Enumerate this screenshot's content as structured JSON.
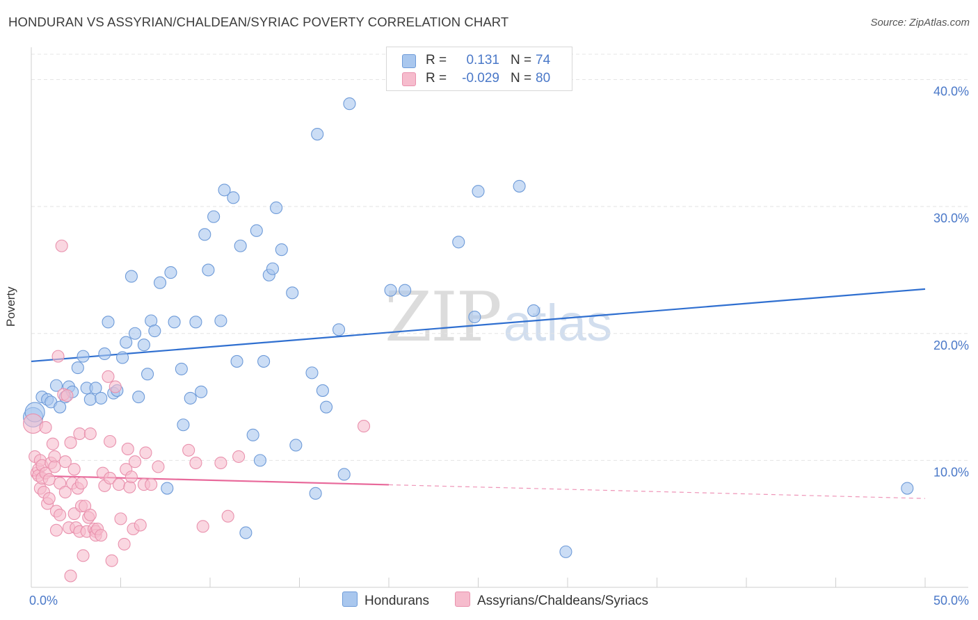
{
  "title": "HONDURAN VS ASSYRIAN/CHALDEAN/SYRIAC POVERTY CORRELATION CHART",
  "source": "Source: ZipAtlas.com",
  "watermark": {
    "zip": "ZIP",
    "atlas": "atlas"
  },
  "legend": {
    "rows": [
      {
        "r_label": "R =",
        "r_value": "0.131",
        "n_label": "N =",
        "n_value": "74"
      },
      {
        "r_label": "R =",
        "r_value": "-0.029",
        "n_label": "N =",
        "n_value": "80"
      }
    ],
    "items": [
      "Hondurans",
      "Assyrians/Chaldeans/Syriacs"
    ]
  },
  "colors": {
    "blue_fill": "#a9c7ee",
    "blue_stroke": "#6d9ad8",
    "blue_line": "#2f6fd0",
    "pink_fill": "#f6bccd",
    "pink_stroke": "#e991ad",
    "pink_line": "#e8689a",
    "tick_text": "#4a78c8",
    "grid": "#e4e4e4"
  },
  "chart_data": {
    "type": "scatter",
    "title": "HONDURAN VS ASSYRIAN/CHALDEAN/SYRIAC POVERTY CORRELATION CHART",
    "xlabel": "",
    "ylabel": "Poverty",
    "xlim": [
      0,
      50
    ],
    "ylim": [
      0,
      42
    ],
    "x_tick_labels": [
      {
        "value": 0,
        "label": "0.0%"
      },
      {
        "value": 50,
        "label": "50.0%"
      }
    ],
    "y_ticks": [
      {
        "value": 10,
        "label": "10.0%"
      },
      {
        "value": 20,
        "label": "20.0%"
      },
      {
        "value": 30,
        "label": "30.0%"
      },
      {
        "value": 40,
        "label": "40.0%"
      }
    ],
    "series": [
      {
        "name": "Hondurans",
        "r": 0.131,
        "n": 74,
        "trend": {
          "x0": 0,
          "y0": 17.8,
          "x1": 50,
          "y1": 23.5,
          "solid_until": 50
        },
        "points": [
          {
            "x": 0.1,
            "y": 13.4,
            "big": true
          },
          {
            "x": 0.2,
            "y": 13.8,
            "big": true
          },
          {
            "x": 0.6,
            "y": 15.0
          },
          {
            "x": 0.9,
            "y": 14.8
          },
          {
            "x": 1.1,
            "y": 14.6
          },
          {
            "x": 1.4,
            "y": 15.9
          },
          {
            "x": 1.6,
            "y": 14.2
          },
          {
            "x": 1.9,
            "y": 15.0
          },
          {
            "x": 2.1,
            "y": 15.8
          },
          {
            "x": 2.3,
            "y": 15.4
          },
          {
            "x": 2.6,
            "y": 17.3
          },
          {
            "x": 2.9,
            "y": 18.2
          },
          {
            "x": 3.1,
            "y": 15.7
          },
          {
            "x": 3.3,
            "y": 14.8
          },
          {
            "x": 3.6,
            "y": 15.7
          },
          {
            "x": 3.9,
            "y": 14.9
          },
          {
            "x": 4.1,
            "y": 18.4
          },
          {
            "x": 4.3,
            "y": 20.9
          },
          {
            "x": 4.6,
            "y": 15.3
          },
          {
            "x": 4.8,
            "y": 15.5
          },
          {
            "x": 5.1,
            "y": 18.1
          },
          {
            "x": 5.3,
            "y": 19.3
          },
          {
            "x": 5.6,
            "y": 24.5
          },
          {
            "x": 5.8,
            "y": 20.0
          },
          {
            "x": 6.0,
            "y": 15.0
          },
          {
            "x": 6.3,
            "y": 19.1
          },
          {
            "x": 6.5,
            "y": 16.8
          },
          {
            "x": 6.7,
            "y": 21.0
          },
          {
            "x": 6.9,
            "y": 20.2
          },
          {
            "x": 7.2,
            "y": 24.0
          },
          {
            "x": 7.6,
            "y": 7.8
          },
          {
            "x": 7.8,
            "y": 24.8
          },
          {
            "x": 8.0,
            "y": 20.9
          },
          {
            "x": 8.4,
            "y": 17.2
          },
          {
            "x": 8.5,
            "y": 12.8
          },
          {
            "x": 8.9,
            "y": 14.9
          },
          {
            "x": 9.2,
            "y": 20.9
          },
          {
            "x": 9.5,
            "y": 15.4
          },
          {
            "x": 9.7,
            "y": 27.8
          },
          {
            "x": 9.9,
            "y": 25.0
          },
          {
            "x": 10.2,
            "y": 29.2
          },
          {
            "x": 10.6,
            "y": 21.0
          },
          {
            "x": 10.8,
            "y": 31.3
          },
          {
            "x": 11.3,
            "y": 30.7
          },
          {
            "x": 11.5,
            "y": 17.8
          },
          {
            "x": 11.7,
            "y": 26.9
          },
          {
            "x": 12.0,
            "y": 4.3
          },
          {
            "x": 12.4,
            "y": 12.0
          },
          {
            "x": 12.6,
            "y": 28.1
          },
          {
            "x": 12.8,
            "y": 10.0
          },
          {
            "x": 13.0,
            "y": 17.8
          },
          {
            "x": 13.3,
            "y": 24.6
          },
          {
            "x": 13.5,
            "y": 25.1
          },
          {
            "x": 13.7,
            "y": 29.9
          },
          {
            "x": 14.0,
            "y": 26.6
          },
          {
            "x": 14.6,
            "y": 23.2
          },
          {
            "x": 14.8,
            "y": 11.2
          },
          {
            "x": 15.7,
            "y": 16.9
          },
          {
            "x": 15.9,
            "y": 7.4
          },
          {
            "x": 16.0,
            "y": 35.7
          },
          {
            "x": 16.3,
            "y": 15.5
          },
          {
            "x": 16.5,
            "y": 14.2
          },
          {
            "x": 17.2,
            "y": 20.3
          },
          {
            "x": 17.5,
            "y": 8.9
          },
          {
            "x": 17.8,
            "y": 38.1
          },
          {
            "x": 20.1,
            "y": 23.4
          },
          {
            "x": 20.9,
            "y": 23.4
          },
          {
            "x": 23.9,
            "y": 27.2
          },
          {
            "x": 24.8,
            "y": 21.3
          },
          {
            "x": 25.0,
            "y": 31.2
          },
          {
            "x": 27.3,
            "y": 31.6
          },
          {
            "x": 28.1,
            "y": 21.8
          },
          {
            "x": 29.9,
            "y": 2.8
          },
          {
            "x": 49.0,
            "y": 7.8
          }
        ]
      },
      {
        "name": "Assyrians/Chaldeans/Syriacs",
        "r": -0.029,
        "n": 80,
        "trend": {
          "x0": 0,
          "y0": 8.8,
          "x1": 50,
          "y1": 7.0,
          "solid_until": 20
        },
        "points": [
          {
            "x": 0.1,
            "y": 12.9,
            "big": true
          },
          {
            "x": 0.2,
            "y": 10.3
          },
          {
            "x": 0.3,
            "y": 9.0
          },
          {
            "x": 0.4,
            "y": 9.3
          },
          {
            "x": 0.4,
            "y": 8.8
          },
          {
            "x": 0.5,
            "y": 7.8
          },
          {
            "x": 0.5,
            "y": 10.0
          },
          {
            "x": 0.6,
            "y": 9.6
          },
          {
            "x": 0.6,
            "y": 8.6
          },
          {
            "x": 0.7,
            "y": 7.5
          },
          {
            "x": 0.8,
            "y": 12.6
          },
          {
            "x": 0.8,
            "y": 9.0
          },
          {
            "x": 0.9,
            "y": 6.6
          },
          {
            "x": 1.0,
            "y": 8.5
          },
          {
            "x": 1.0,
            "y": 7.0
          },
          {
            "x": 1.1,
            "y": 9.8
          },
          {
            "x": 1.2,
            "y": 11.3
          },
          {
            "x": 1.3,
            "y": 10.3
          },
          {
            "x": 1.3,
            "y": 9.5
          },
          {
            "x": 1.4,
            "y": 6.0
          },
          {
            "x": 1.4,
            "y": 4.5
          },
          {
            "x": 1.5,
            "y": 18.2
          },
          {
            "x": 1.6,
            "y": 5.7
          },
          {
            "x": 1.6,
            "y": 8.2
          },
          {
            "x": 1.7,
            "y": 26.9
          },
          {
            "x": 1.8,
            "y": 15.2
          },
          {
            "x": 1.9,
            "y": 9.9
          },
          {
            "x": 1.9,
            "y": 7.5
          },
          {
            "x": 2.0,
            "y": 15.1
          },
          {
            "x": 2.1,
            "y": 4.7
          },
          {
            "x": 2.2,
            "y": 11.4
          },
          {
            "x": 2.2,
            "y": 0.9
          },
          {
            "x": 2.3,
            "y": 8.2
          },
          {
            "x": 2.4,
            "y": 5.8
          },
          {
            "x": 2.4,
            "y": 9.3
          },
          {
            "x": 2.5,
            "y": 4.7
          },
          {
            "x": 2.6,
            "y": 7.8
          },
          {
            "x": 2.7,
            "y": 12.1
          },
          {
            "x": 2.7,
            "y": 4.4
          },
          {
            "x": 2.8,
            "y": 6.4
          },
          {
            "x": 2.8,
            "y": 8.2
          },
          {
            "x": 2.9,
            "y": 2.5
          },
          {
            "x": 3.0,
            "y": 6.4
          },
          {
            "x": 3.1,
            "y": 4.4
          },
          {
            "x": 3.2,
            "y": 5.5
          },
          {
            "x": 3.3,
            "y": 5.7
          },
          {
            "x": 3.3,
            "y": 12.1
          },
          {
            "x": 3.5,
            "y": 4.6
          },
          {
            "x": 3.6,
            "y": 4.4
          },
          {
            "x": 3.6,
            "y": 4.1
          },
          {
            "x": 3.7,
            "y": 4.6
          },
          {
            "x": 3.9,
            "y": 4.1
          },
          {
            "x": 4.0,
            "y": 9.0
          },
          {
            "x": 4.1,
            "y": 8.0
          },
          {
            "x": 4.3,
            "y": 16.6
          },
          {
            "x": 4.4,
            "y": 11.5
          },
          {
            "x": 4.4,
            "y": 8.6
          },
          {
            "x": 4.5,
            "y": 2.1
          },
          {
            "x": 4.7,
            "y": 15.8
          },
          {
            "x": 4.9,
            "y": 8.1
          },
          {
            "x": 5.0,
            "y": 5.4
          },
          {
            "x": 5.2,
            "y": 3.4
          },
          {
            "x": 5.3,
            "y": 9.3
          },
          {
            "x": 5.4,
            "y": 10.9
          },
          {
            "x": 5.5,
            "y": 7.9
          },
          {
            "x": 5.6,
            "y": 8.7
          },
          {
            "x": 5.7,
            "y": 4.6
          },
          {
            "x": 5.8,
            "y": 9.9
          },
          {
            "x": 6.1,
            "y": 4.9
          },
          {
            "x": 6.3,
            "y": 8.1
          },
          {
            "x": 6.4,
            "y": 10.6
          },
          {
            "x": 6.7,
            "y": 8.1
          },
          {
            "x": 7.1,
            "y": 9.5
          },
          {
            "x": 8.8,
            "y": 10.8
          },
          {
            "x": 9.2,
            "y": 9.8
          },
          {
            "x": 9.6,
            "y": 4.8
          },
          {
            "x": 10.6,
            "y": 9.8
          },
          {
            "x": 11.0,
            "y": 5.6
          },
          {
            "x": 11.6,
            "y": 10.3
          },
          {
            "x": 18.6,
            "y": 12.7
          }
        ]
      }
    ]
  }
}
